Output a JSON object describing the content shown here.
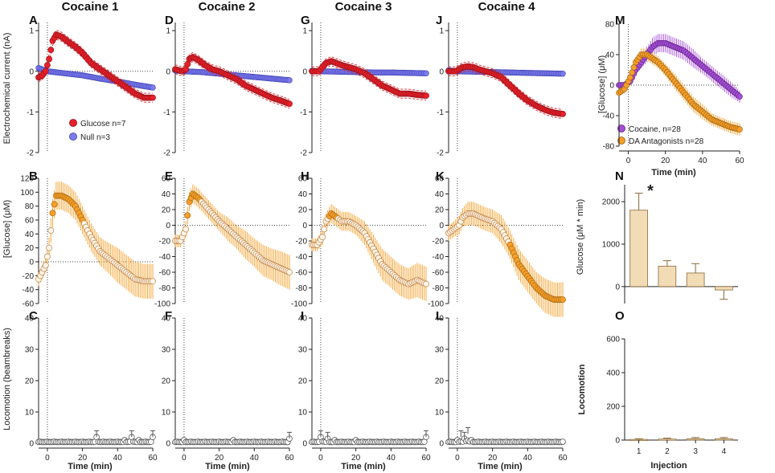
{
  "column_titles": [
    "Cocaine 1",
    "Cocaine 2",
    "Cocaine 3",
    "Cocaine 4"
  ],
  "panel_letters": {
    "row1": [
      "A",
      "D",
      "G",
      "J"
    ],
    "row2": [
      "B",
      "E",
      "H",
      "K"
    ],
    "row3": [
      "C",
      "F",
      "I",
      "L"
    ],
    "right": [
      "M",
      "N",
      "O"
    ]
  },
  "axes": {
    "row1_ylabel": "Electrochemical current (nA)",
    "row2_ylabel": "[Glucose] (μM)",
    "row3_ylabel": "Locomotion (beambreaks)",
    "time_xlabel": "Time  (min)",
    "m_ylabel": "[Glucose] (μM)",
    "m_xlabel": "Time (min)",
    "n_ylabel": "Glucose (μM * min)",
    "o_ylabel": "Locomotion",
    "o_xlabel": "Injection",
    "time_ticks": [
      "0",
      "20",
      "40",
      "60"
    ],
    "row1_ticks": [
      "1",
      "0",
      "-1",
      "-2"
    ],
    "row2_ticks_A": [
      "120",
      "100",
      "80",
      "60",
      "40",
      "20",
      "0",
      "-20",
      "-40",
      "-60"
    ],
    "row2_ticks_sym": [
      "60",
      "40",
      "20",
      "0",
      "-20",
      "-40",
      "-60",
      "-80",
      "-100"
    ],
    "row3_ticks": [
      "40",
      "30",
      "20",
      "10",
      "0"
    ],
    "m_ticks": [
      "80",
      "40",
      "0",
      "-40",
      "-80"
    ],
    "n_ticks": [
      "2000",
      "1000",
      "0"
    ],
    "o_ticks": [
      "600",
      "400",
      "200",
      "0"
    ],
    "inj_ticks": [
      "1",
      "2",
      "3",
      "4"
    ]
  },
  "legends": {
    "row1": [
      "Glucose n=7",
      "Null n=3"
    ],
    "m": [
      "Cocaine, n=28",
      "DA Antagonists n=28"
    ]
  },
  "significance_marker": "*",
  "colors": {
    "glucose_red": "#e8202a",
    "null_blue": "#7b7bf0",
    "orange": "#f5a02a",
    "orange_open": "#fbe3c4",
    "purple": "#a64fd6",
    "bar_fill": "#f1dcb6"
  },
  "chart_data": [
    {
      "panel": "A",
      "type": "line",
      "title": "Cocaine 1",
      "xlabel": "Time  (min)",
      "ylabel": "Electrochemical current (nA)",
      "xlim": [
        -5,
        60
      ],
      "ylim": [
        -2,
        1.2
      ],
      "series": [
        {
          "name": "Glucose n=7",
          "x": [
            -5,
            -3,
            -1,
            1,
            3,
            5,
            8,
            12,
            16,
            20,
            25,
            30,
            35,
            40,
            45,
            50,
            55,
            60
          ],
          "y": [
            -0.15,
            -0.1,
            0,
            0.3,
            0.75,
            0.9,
            0.85,
            0.72,
            0.6,
            0.45,
            0.2,
            0.05,
            -0.1,
            -0.25,
            -0.4,
            -0.55,
            -0.65,
            -0.65
          ]
        },
        {
          "name": "Null n=3",
          "x": [
            -5,
            0,
            10,
            20,
            30,
            40,
            50,
            60
          ],
          "y": [
            0.08,
            0,
            -0.05,
            -0.1,
            -0.18,
            -0.25,
            -0.33,
            -0.4
          ]
        }
      ]
    },
    {
      "panel": "D",
      "type": "line",
      "title": "Cocaine 2",
      "xlabel": "Time  (min)",
      "ylabel": "",
      "xlim": [
        -5,
        60
      ],
      "ylim": [
        -2,
        1.2
      ],
      "series": [
        {
          "name": "Glucose n=7",
          "x": [
            -5,
            -1,
            1,
            3,
            5,
            8,
            12,
            16,
            20,
            25,
            30,
            35,
            40,
            45,
            50,
            55,
            60
          ],
          "y": [
            0.05,
            0,
            0.05,
            0.3,
            0.35,
            0.28,
            0.15,
            0.05,
            0,
            -0.1,
            -0.2,
            -0.35,
            -0.45,
            -0.55,
            -0.65,
            -0.72,
            -0.8
          ]
        },
        {
          "name": "Null n=3",
          "x": [
            -5,
            0,
            10,
            20,
            30,
            40,
            50,
            60
          ],
          "y": [
            0.02,
            0,
            -0.02,
            -0.06,
            -0.1,
            -0.14,
            -0.18,
            -0.22
          ]
        }
      ]
    },
    {
      "panel": "G",
      "type": "line",
      "title": "Cocaine 3",
      "xlabel": "Time  (min)",
      "ylabel": "",
      "xlim": [
        -5,
        60
      ],
      "ylim": [
        -2,
        1.2
      ],
      "series": [
        {
          "name": "Glucose n=7",
          "x": [
            -5,
            -1,
            1,
            3,
            6,
            9,
            12,
            16,
            20,
            25,
            30,
            35,
            40,
            45,
            50,
            55,
            60
          ],
          "y": [
            0,
            0,
            0.1,
            0.2,
            0.25,
            0.2,
            0.15,
            0.1,
            0.05,
            -0.05,
            -0.2,
            -0.35,
            -0.45,
            -0.55,
            -0.55,
            -0.58,
            -0.6
          ]
        },
        {
          "name": "Null n=3",
          "x": [
            -5,
            0,
            10,
            20,
            30,
            40,
            50,
            60
          ],
          "y": [
            0.01,
            0,
            -0.01,
            -0.02,
            -0.03,
            -0.03,
            -0.04,
            -0.05
          ]
        }
      ]
    },
    {
      "panel": "J",
      "type": "line",
      "title": "Cocaine 4",
      "xlabel": "Time  (min)",
      "ylabel": "",
      "xlim": [
        -5,
        60
      ],
      "ylim": [
        -2,
        1.2
      ],
      "series": [
        {
          "name": "Glucose n=7",
          "x": [
            -5,
            -1,
            1,
            3,
            6,
            9,
            12,
            16,
            20,
            25,
            30,
            35,
            40,
            45,
            50,
            55,
            60
          ],
          "y": [
            0,
            0,
            0.05,
            0.1,
            0.12,
            0.1,
            0.05,
            0,
            -0.05,
            -0.15,
            -0.35,
            -0.55,
            -0.72,
            -0.85,
            -0.95,
            -1.02,
            -1.05
          ]
        },
        {
          "name": "Null n=3",
          "x": [
            -5,
            0,
            10,
            20,
            30,
            40,
            50,
            60
          ],
          "y": [
            0.02,
            0,
            -0.01,
            -0.02,
            -0.03,
            -0.04,
            -0.05,
            -0.06
          ]
        }
      ]
    },
    {
      "panel": "B",
      "type": "line",
      "xlabel": "Time  (min)",
      "ylabel": "[Glucose] (μM)",
      "xlim": [
        -5,
        60
      ],
      "ylim": [
        -60,
        120
      ],
      "series": [
        {
          "name": "glucose",
          "x": [
            -5,
            -3,
            -1,
            1,
            3,
            5,
            8,
            12,
            16,
            20,
            25,
            30,
            35,
            40,
            45,
            50,
            55,
            60
          ],
          "y": [
            -25,
            -15,
            -5,
            20,
            70,
            95,
            95,
            90,
            80,
            60,
            35,
            15,
            5,
            -5,
            -15,
            -25,
            -28,
            -28
          ],
          "sem": [
            10,
            10,
            10,
            15,
            20,
            20,
            20,
            20,
            20,
            20,
            20,
            20,
            22,
            25,
            25,
            25,
            25,
            25
          ]
        }
      ]
    },
    {
      "panel": "E",
      "type": "line",
      "xlabel": "Time  (min)",
      "ylabel": "",
      "xlim": [
        -5,
        60
      ],
      "ylim": [
        -100,
        60
      ],
      "series": [
        {
          "name": "glucose",
          "x": [
            -5,
            -2,
            1,
            3,
            5,
            8,
            12,
            16,
            20,
            25,
            30,
            35,
            40,
            45,
            50,
            55,
            60
          ],
          "y": [
            -20,
            -20,
            -5,
            30,
            40,
            35,
            25,
            15,
            5,
            -5,
            -15,
            -25,
            -35,
            -45,
            -50,
            -55,
            -60
          ],
          "sem": [
            8,
            8,
            10,
            12,
            12,
            12,
            12,
            12,
            12,
            15,
            15,
            18,
            18,
            20,
            20,
            22,
            22
          ]
        }
      ]
    },
    {
      "panel": "H",
      "type": "line",
      "xlabel": "Time  (min)",
      "ylabel": "",
      "xlim": [
        -5,
        60
      ],
      "ylim": [
        -100,
        60
      ],
      "series": [
        {
          "name": "glucose",
          "x": [
            -5,
            -2,
            1,
            3,
            6,
            9,
            12,
            16,
            20,
            25,
            30,
            35,
            40,
            45,
            50,
            55,
            60
          ],
          "y": [
            -25,
            -25,
            -15,
            5,
            15,
            10,
            5,
            5,
            0,
            -10,
            -30,
            -50,
            -60,
            -70,
            -75,
            -70,
            -75
          ],
          "sem": [
            8,
            8,
            10,
            10,
            12,
            12,
            12,
            12,
            12,
            15,
            18,
            20,
            20,
            20,
            20,
            22,
            22
          ]
        }
      ]
    },
    {
      "panel": "K",
      "type": "line",
      "xlabel": "Time  (min)",
      "ylabel": "",
      "xlim": [
        -5,
        60
      ],
      "ylim": [
        -100,
        60
      ],
      "series": [
        {
          "name": "glucose",
          "x": [
            -5,
            -2,
            1,
            3,
            6,
            9,
            12,
            16,
            20,
            25,
            30,
            35,
            40,
            45,
            50,
            55,
            60
          ],
          "y": [
            -10,
            -5,
            0,
            10,
            15,
            15,
            12,
            8,
            5,
            -5,
            -25,
            -50,
            -65,
            -80,
            -90,
            -95,
            -95
          ],
          "sem": [
            10,
            10,
            12,
            12,
            15,
            15,
            15,
            15,
            15,
            18,
            18,
            20,
            20,
            20,
            22,
            22,
            22
          ]
        }
      ]
    },
    {
      "panel": "C",
      "type": "scatter",
      "xlabel": "Time  (min)",
      "ylabel": "Locomotion (beambreaks)",
      "xlim": [
        -5,
        60
      ],
      "ylim": [
        0,
        40
      ],
      "series": [
        {
          "name": "locomotion",
          "x": [
            -4,
            0,
            4,
            8,
            12,
            16,
            20,
            24,
            28,
            32,
            36,
            40,
            44,
            48,
            52,
            56,
            60
          ],
          "y": [
            0.5,
            0.5,
            0.5,
            0.5,
            0.5,
            0.5,
            0.5,
            0.5,
            2,
            0.5,
            0.5,
            0.5,
            1,
            2,
            1,
            0.5,
            2
          ]
        }
      ]
    },
    {
      "panel": "F",
      "type": "scatter",
      "xlabel": "Time  (min)",
      "ylabel": "",
      "xlim": [
        -5,
        60
      ],
      "ylim": [
        0,
        40
      ],
      "series": [
        {
          "name": "locomotion",
          "x": [
            -4,
            0,
            4,
            8,
            12,
            16,
            20,
            24,
            28,
            32,
            36,
            40,
            44,
            48,
            52,
            56,
            60
          ],
          "y": [
            0.5,
            1,
            0.5,
            0.5,
            0.5,
            0.5,
            0.5,
            0.5,
            1,
            0.5,
            0.5,
            0.5,
            0.5,
            0.5,
            0.5,
            0.5,
            1.5
          ]
        }
      ]
    },
    {
      "panel": "I",
      "type": "scatter",
      "xlabel": "Time  (min)",
      "ylabel": "",
      "xlim": [
        -5,
        60
      ],
      "ylim": [
        0,
        40
      ],
      "series": [
        {
          "name": "locomotion",
          "x": [
            -4,
            0,
            4,
            8,
            12,
            16,
            20,
            24,
            28,
            32,
            36,
            40,
            44,
            48,
            52,
            56,
            60
          ],
          "y": [
            0.5,
            2,
            1.5,
            1,
            0.5,
            0.5,
            1,
            0.5,
            0.5,
            0.5,
            0.5,
            0.5,
            0.5,
            0.5,
            0.5,
            0.5,
            2
          ]
        }
      ]
    },
    {
      "panel": "L",
      "type": "scatter",
      "xlabel": "Time  (min)",
      "ylabel": "",
      "xlim": [
        -5,
        60
      ],
      "ylim": [
        0,
        40
      ],
      "series": [
        {
          "name": "locomotion",
          "x": [
            -4,
            0,
            2,
            4,
            6,
            8,
            12,
            16,
            20,
            24,
            28,
            32,
            36,
            40,
            44,
            48,
            52,
            56,
            60
          ],
          "y": [
            0.5,
            1,
            2,
            1.5,
            3,
            1,
            0.5,
            0.5,
            0.5,
            0.5,
            0.5,
            0.5,
            0.5,
            0.5,
            0.5,
            0.5,
            0.5,
            0.5,
            0.5
          ]
        }
      ]
    },
    {
      "panel": "M",
      "type": "line",
      "xlabel": "Time (min)",
      "ylabel": "[Glucose] (μM)",
      "xlim": [
        -5,
        60
      ],
      "ylim": [
        -80,
        80
      ],
      "series": [
        {
          "name": "Cocaine, n=28",
          "x": [
            -5,
            -2,
            1,
            4,
            7,
            10,
            13,
            16,
            20,
            25,
            30,
            35,
            40,
            45,
            50,
            55,
            60
          ],
          "y": [
            0,
            0,
            5,
            20,
            30,
            40,
            50,
            55,
            55,
            50,
            45,
            35,
            25,
            15,
            5,
            -5,
            -15
          ],
          "sem": [
            4,
            4,
            5,
            6,
            8,
            10,
            12,
            12,
            12,
            12,
            12,
            12,
            10,
            10,
            10,
            10,
            8
          ]
        },
        {
          "name": "DA Antagonists n=28",
          "x": [
            -5,
            -2,
            1,
            4,
            7,
            10,
            13,
            16,
            20,
            25,
            30,
            35,
            40,
            45,
            50,
            55,
            60
          ],
          "y": [
            -10,
            -5,
            10,
            30,
            40,
            40,
            35,
            30,
            20,
            5,
            -10,
            -25,
            -35,
            -45,
            -50,
            -55,
            -58
          ],
          "sem": [
            4,
            4,
            5,
            6,
            8,
            8,
            8,
            8,
            8,
            10,
            10,
            10,
            10,
            8,
            8,
            8,
            8
          ]
        }
      ]
    },
    {
      "panel": "N",
      "type": "bar",
      "xlabel": "",
      "ylabel": "Glucose (μM * min)",
      "categories": [
        "1",
        "2",
        "3",
        "4"
      ],
      "values": [
        1800,
        480,
        320,
        -80
      ],
      "sem": [
        400,
        130,
        220,
        220
      ],
      "ylim": [
        -400,
        2400
      ]
    },
    {
      "panel": "O",
      "type": "bar",
      "xlabel": "Injection",
      "ylabel": "Locomotion",
      "categories": [
        "1",
        "2",
        "3",
        "4"
      ],
      "values": [
        4,
        6,
        8,
        8
      ],
      "sem": [
        4,
        5,
        7,
        7
      ],
      "ylim": [
        0,
        600
      ]
    }
  ]
}
